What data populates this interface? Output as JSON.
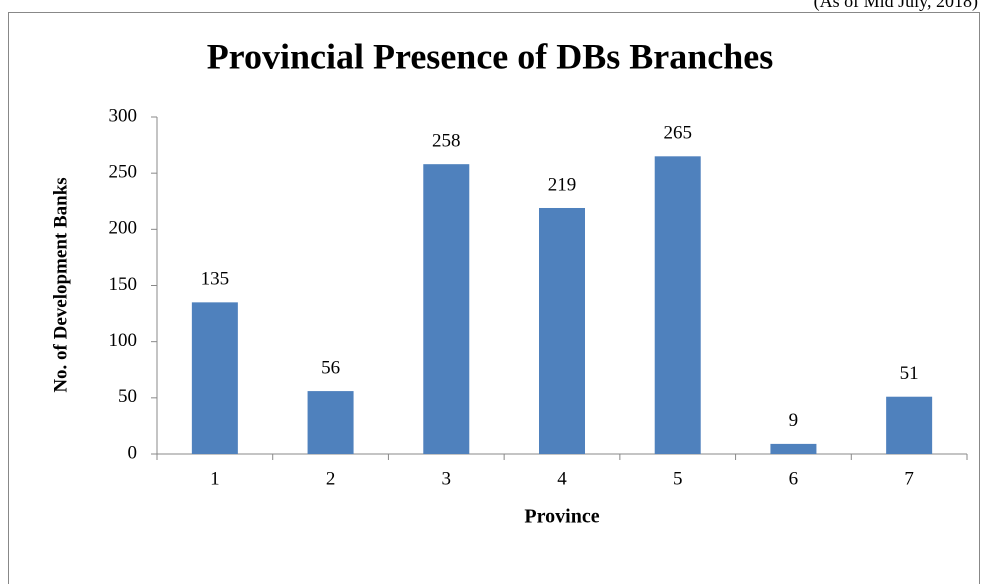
{
  "chart_data": {
    "type": "bar",
    "subtitle": "(As of Mid July, 2018)",
    "title": "Provincial Presence of DBs Branches",
    "y_label": "No. of Development Banks",
    "x_label": "Province",
    "categories": [
      "1",
      "2",
      "3",
      "4",
      "5",
      "6",
      "7"
    ],
    "values": [
      135,
      56,
      258,
      219,
      265,
      9,
      51
    ],
    "color": "#4f81bd",
    "ylim": [
      0,
      300
    ],
    "yticks": [
      0,
      50,
      100,
      150,
      200,
      250,
      300
    ],
    "grid": false
  }
}
